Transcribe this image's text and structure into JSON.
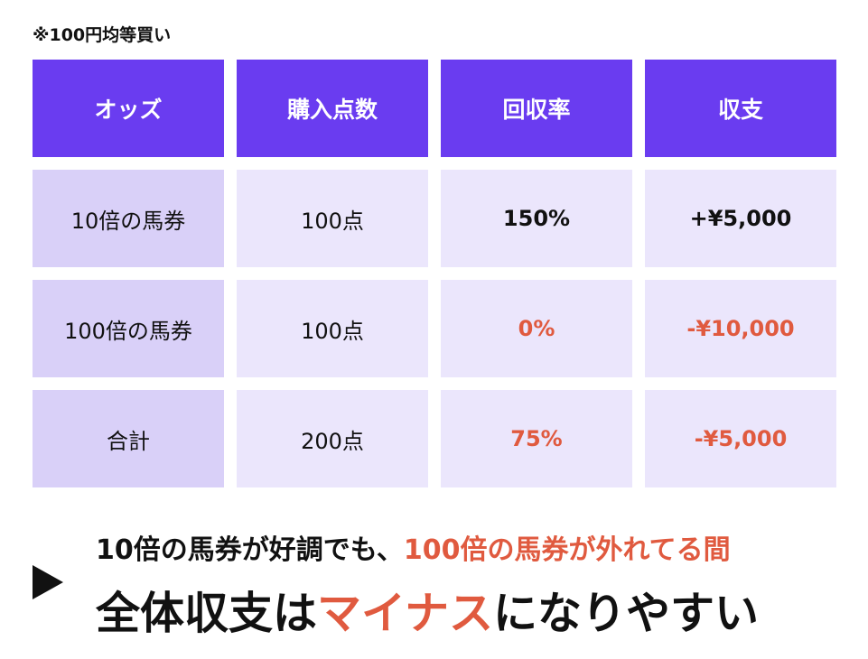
{
  "note": "※100円均等買い",
  "table": {
    "headers": [
      "オッズ",
      "購入点数",
      "回収率",
      "収支"
    ],
    "rows": [
      {
        "label": "10倍の馬券",
        "points": "100点",
        "rate": "150%",
        "balance": "+¥5,000"
      },
      {
        "label": "100倍の馬券",
        "points": "100点",
        "rate": "0%",
        "balance": "-¥10,000"
      },
      {
        "label": "合計",
        "points": "200点",
        "rate": "75%",
        "balance": "-¥5,000"
      }
    ]
  },
  "summary": {
    "line1_a": "10倍の馬券が好調でも、",
    "line1_b": "100倍の馬券が外れてる間",
    "line2_a": "全体収支は",
    "line2_b": "マイナス",
    "line2_c": "になりやすい"
  },
  "colors": {
    "header_bg": "#6a3cf0",
    "first_col_bg": "#d9d0f8",
    "cell_bg": "#ebe6fc",
    "accent": "#e05a3f"
  }
}
